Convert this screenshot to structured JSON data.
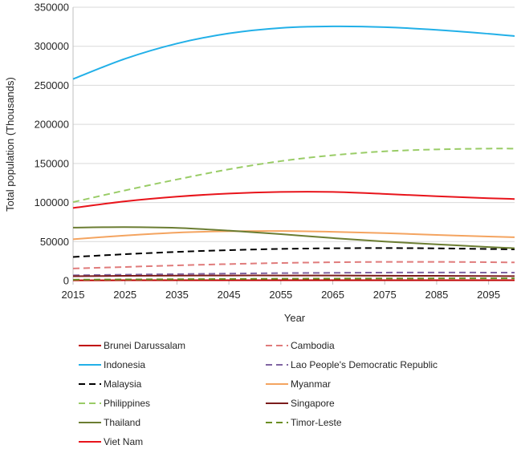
{
  "chart_data": {
    "type": "line",
    "title": "",
    "xlabel": "Year",
    "ylabel": "Total population (Thousands)",
    "xlim": [
      2015,
      2100
    ],
    "ylim": [
      0,
      350000
    ],
    "x_ticks": [
      2015,
      2025,
      2035,
      2045,
      2055,
      2065,
      2075,
      2085,
      2095
    ],
    "y_ticks": [
      "0",
      "50000",
      "100000",
      "150000",
      "200000",
      "250000",
      "300000",
      "350000"
    ],
    "y_tick_values": [
      0,
      50000,
      100000,
      150000,
      200000,
      250000,
      300000,
      350000
    ],
    "grid": "horizontal",
    "legend_placement": "bottom",
    "x": [
      2015,
      2025,
      2035,
      2045,
      2055,
      2065,
      2075,
      2085,
      2095,
      2100
    ],
    "series": [
      {
        "name": "Brunei Darussalam",
        "color": "#c00000",
        "dash": "solid",
        "values": [
          420,
          450,
          475,
          490,
          495,
          495,
          488,
          478,
          465,
          458
        ]
      },
      {
        "name": "Cambodia",
        "color": "#e07b7b",
        "dash": "dashed",
        "values": [
          15500,
          17500,
          19500,
          21200,
          22600,
          23500,
          24000,
          24000,
          23600,
          23300
        ]
      },
      {
        "name": "Indonesia",
        "color": "#22b0e8",
        "dash": "solid",
        "values": [
          258000,
          284000,
          303500,
          316500,
          323500,
          325500,
          324500,
          321000,
          316000,
          313000
        ]
      },
      {
        "name": "Lao People's Democratic Republic",
        "color": "#8064a2",
        "dash": "dashed",
        "values": [
          6800,
          7600,
          8300,
          9000,
          9600,
          10000,
          10300,
          10400,
          10300,
          10200
        ]
      },
      {
        "name": "Malaysia",
        "color": "#000000",
        "dash": "dashed",
        "values": [
          30300,
          33800,
          36800,
          39000,
          40600,
          41400,
          41700,
          41300,
          40500,
          40000
        ]
      },
      {
        "name": "Myanmar",
        "color": "#f4a460",
        "dash": "solid",
        "values": [
          53000,
          57800,
          61500,
          63200,
          63500,
          62500,
          60800,
          58500,
          56500,
          55500
        ]
      },
      {
        "name": "Philippines",
        "color": "#99cc66",
        "dash": "dashed",
        "values": [
          100500,
          115500,
          129500,
          142500,
          153000,
          160500,
          165500,
          168000,
          169000,
          169000
        ]
      },
      {
        "name": "Singapore",
        "color": "#7b1c1c",
        "dash": "solid",
        "values": [
          5600,
          6100,
          6400,
          6600,
          6600,
          6500,
          6300,
          6100,
          5900,
          5800
        ]
      },
      {
        "name": "Thailand",
        "color": "#6b7d32",
        "dash": "solid",
        "values": [
          67900,
          68500,
          67500,
          64000,
          59500,
          54500,
          50000,
          46500,
          43000,
          41500
        ]
      },
      {
        "name": "Timor-Leste",
        "color": "#6b8e23",
        "dash": "dashed",
        "values": [
          1200,
          1500,
          1800,
          2100,
          2400,
          2600,
          2800,
          2900,
          3000,
          3000
        ]
      },
      {
        "name": "Viet Nam",
        "color": "#e8141b",
        "dash": "solid",
        "values": [
          93000,
          101500,
          107500,
          111500,
          113500,
          113500,
          111000,
          108000,
          105500,
          104500
        ]
      }
    ]
  }
}
